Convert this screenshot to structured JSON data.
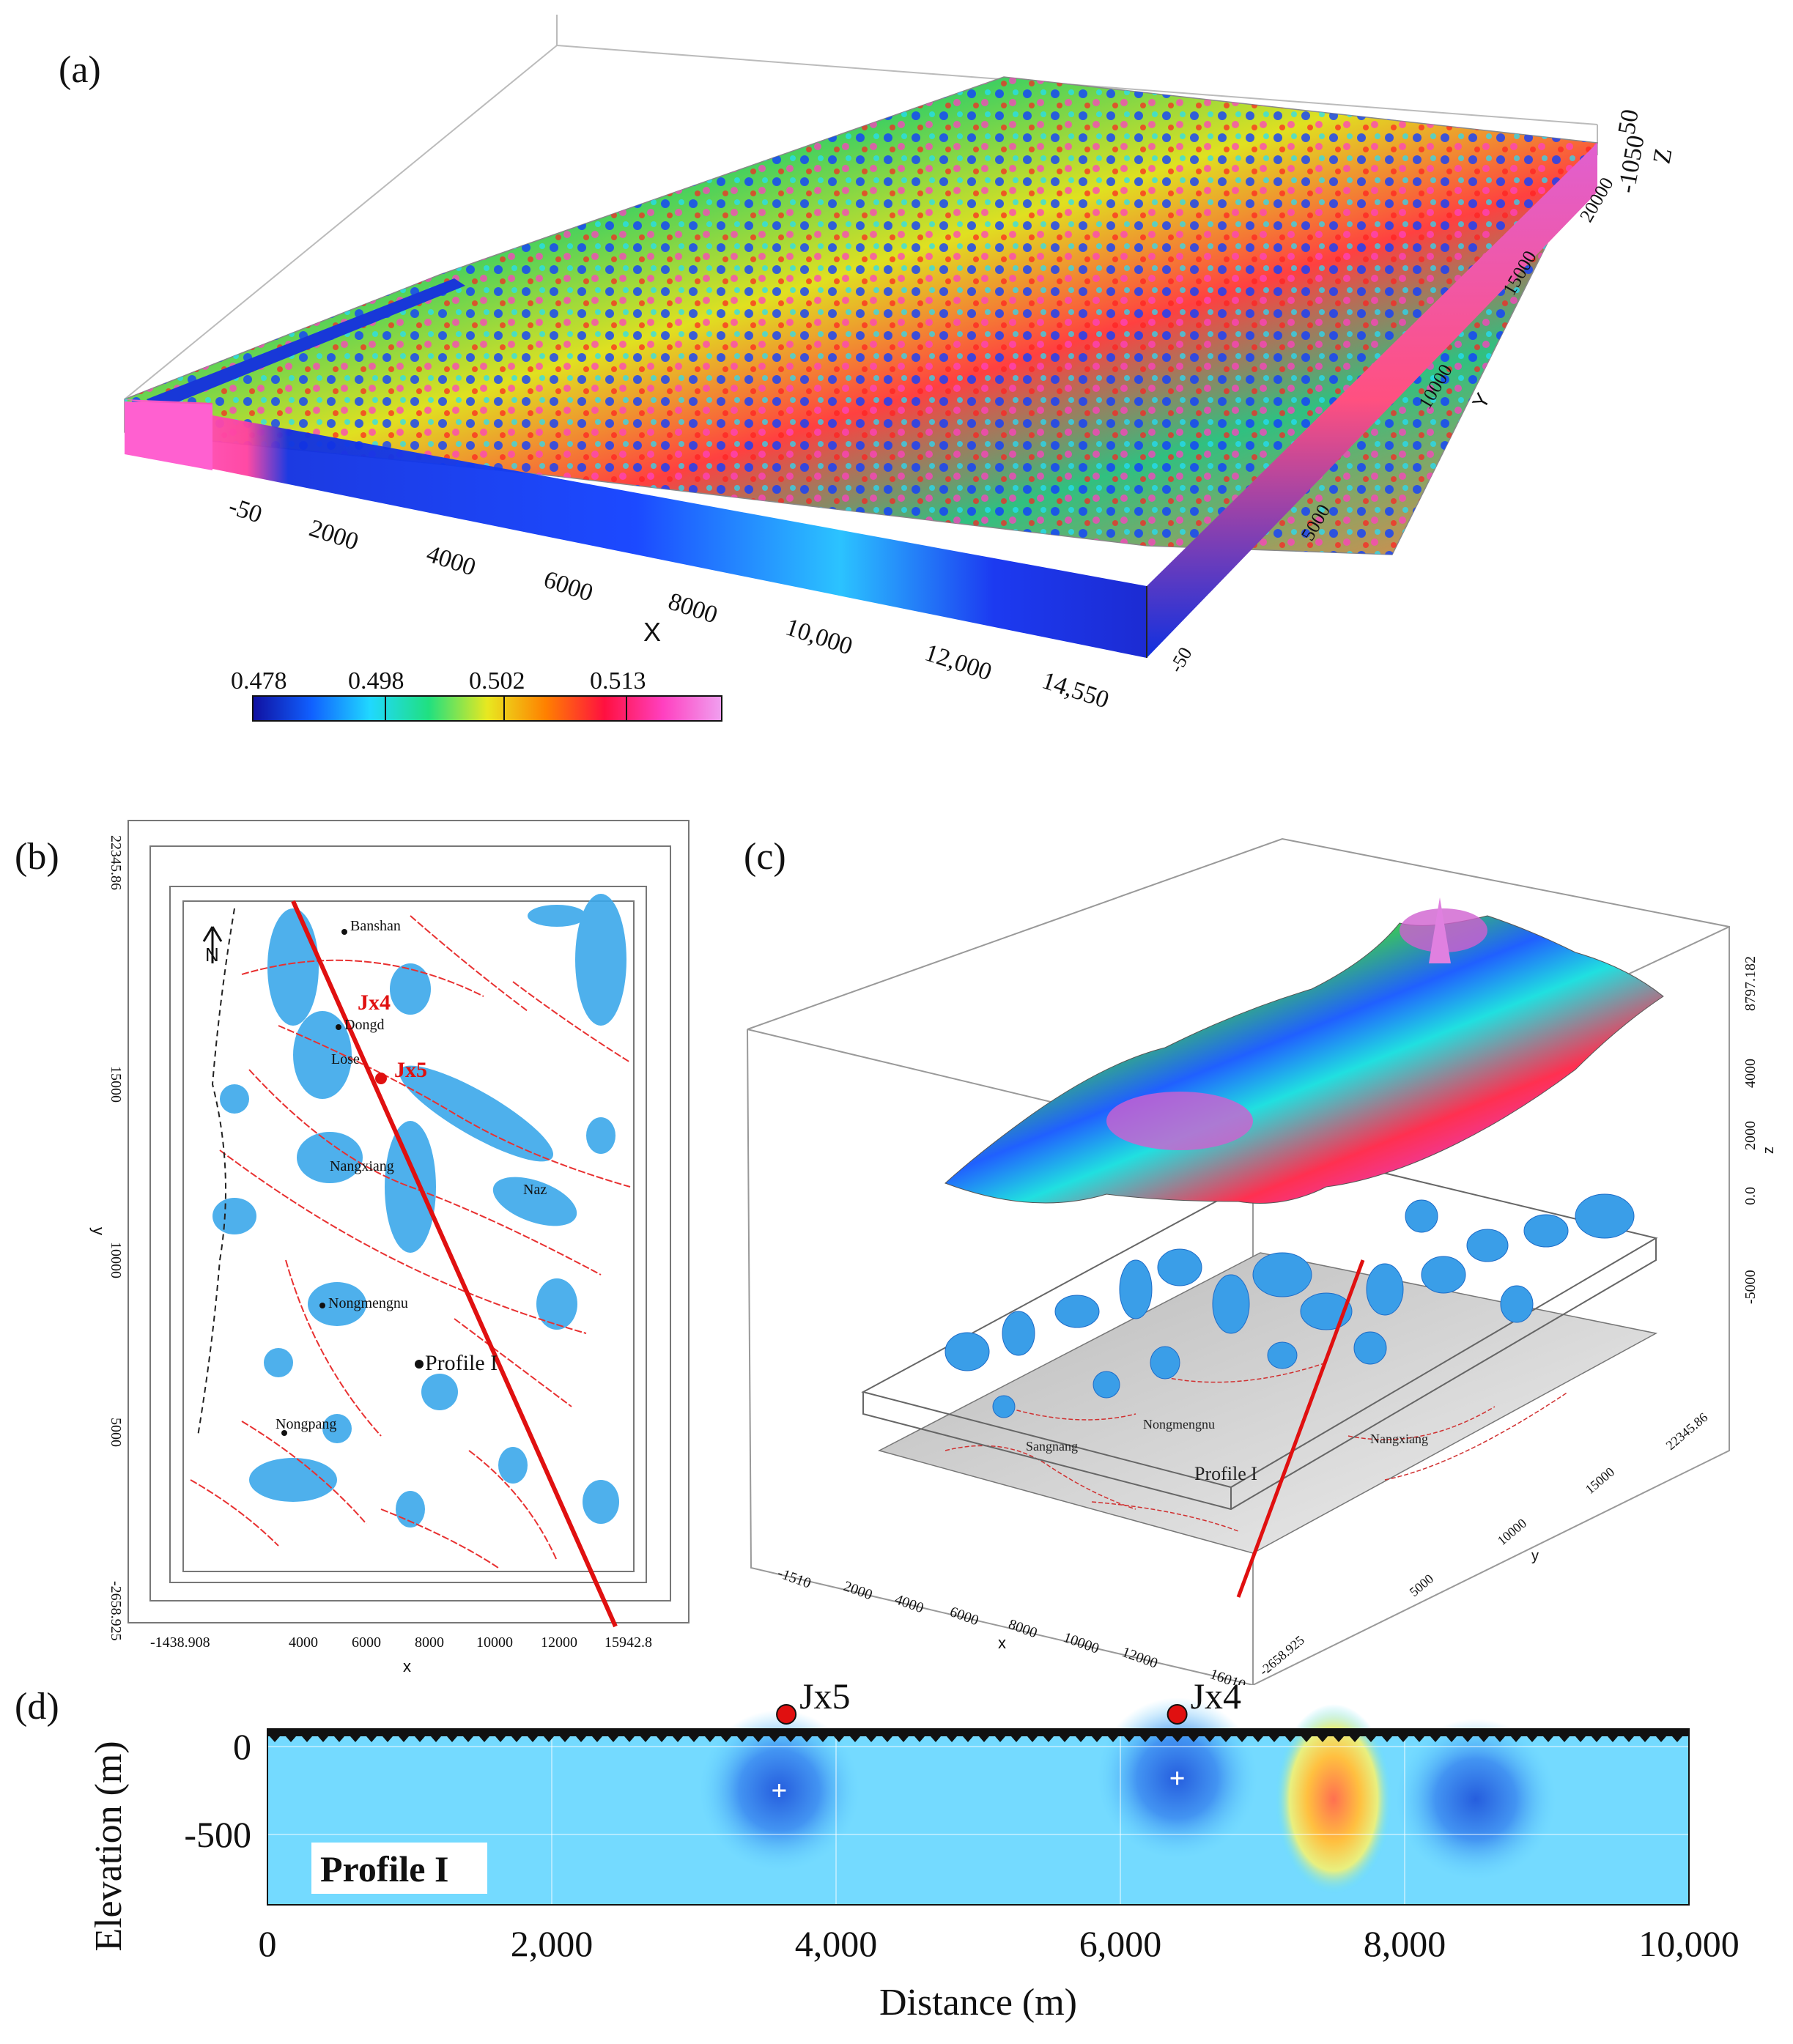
{
  "panels": {
    "a": {
      "label": "(a)",
      "x_ticks": [
        "-50",
        "2000",
        "4000",
        "6000",
        "8000",
        "10,000",
        "12,000",
        "14,550"
      ],
      "x_axis_label": "X",
      "y_ticks": [
        "-50",
        "5000",
        "10000",
        "15000",
        "20000"
      ],
      "y_axis_label": "Y",
      "z_ticks": [
        "50",
        "-1050",
        "Z"
      ],
      "colorbar": {
        "ticks": [
          "0.478",
          "0.498",
          "0.502",
          "0.513"
        ],
        "stops": [
          "#1010a0",
          "#1060ff",
          "#20d8ff",
          "#20e080",
          "#e8e820",
          "#ff8000",
          "#ff1040",
          "#ff40c0",
          "#f0a0f0"
        ]
      }
    },
    "b": {
      "label": "(b)",
      "places": [
        "Banshan",
        "Jx4",
        "Jx5",
        "Dongd",
        "Lose",
        "Nangxiang",
        "Naz",
        "Nongmengnu",
        "Profile I",
        "Nongpang"
      ],
      "x_ticks": [
        "-1438.908",
        "4000",
        "6000",
        "8000",
        "10000",
        "12000",
        "15942.8"
      ],
      "x_axis_label": "x",
      "y_ticks": [
        "22345.86",
        "15000",
        "10000",
        "5000",
        "-2658.925"
      ],
      "y_axis_label": "y",
      "north_label": "N"
    },
    "c": {
      "label": "(c)",
      "x_ticks": [
        "-1510",
        "2000",
        "4000",
        "6000",
        "8000",
        "10000",
        "12000",
        "16010"
      ],
      "x_axis_label": "x",
      "y_ticks": [
        "-2658.925",
        "5000",
        "10000",
        "15000",
        "22345.86"
      ],
      "y_axis_label": "y",
      "z_ticks": [
        "8797.182",
        "4000",
        "2000",
        "0.0",
        "-5000"
      ],
      "z_axis_label": "z",
      "map_places": [
        "Sangnang",
        "Nongmengnu",
        "Nangxiang",
        "Profile I"
      ]
    },
    "d": {
      "label": "(d)",
      "profile_label": "Profile I",
      "wells": [
        {
          "name": "Jx5",
          "distance": 3650
        },
        {
          "name": "Jx4",
          "distance": 6400
        }
      ]
    }
  },
  "chart_data": {
    "type": "heatmap",
    "title": "Profile I",
    "xlabel": "Distance (m)",
    "ylabel": "Elevation (m)",
    "xlim": [
      0,
      10000
    ],
    "ylim": [
      -900,
      100
    ],
    "x_tick_values": [
      0,
      2000,
      4000,
      6000,
      8000,
      10000
    ],
    "x_tick_labels": [
      "0",
      "2,000",
      "4,000",
      "6,000",
      "8,000",
      "10,000"
    ],
    "y_tick_values": [
      0,
      -500
    ],
    "y_tick_labels": [
      "0",
      "-500"
    ],
    "anomalies": [
      {
        "kind": "high",
        "distance": 7500,
        "elevation": -300
      },
      {
        "kind": "low",
        "distance": 8500,
        "elevation": -300
      },
      {
        "kind": "low",
        "distance": 3600,
        "elevation": -250
      },
      {
        "kind": "low",
        "distance": 6400,
        "elevation": -180
      }
    ]
  }
}
